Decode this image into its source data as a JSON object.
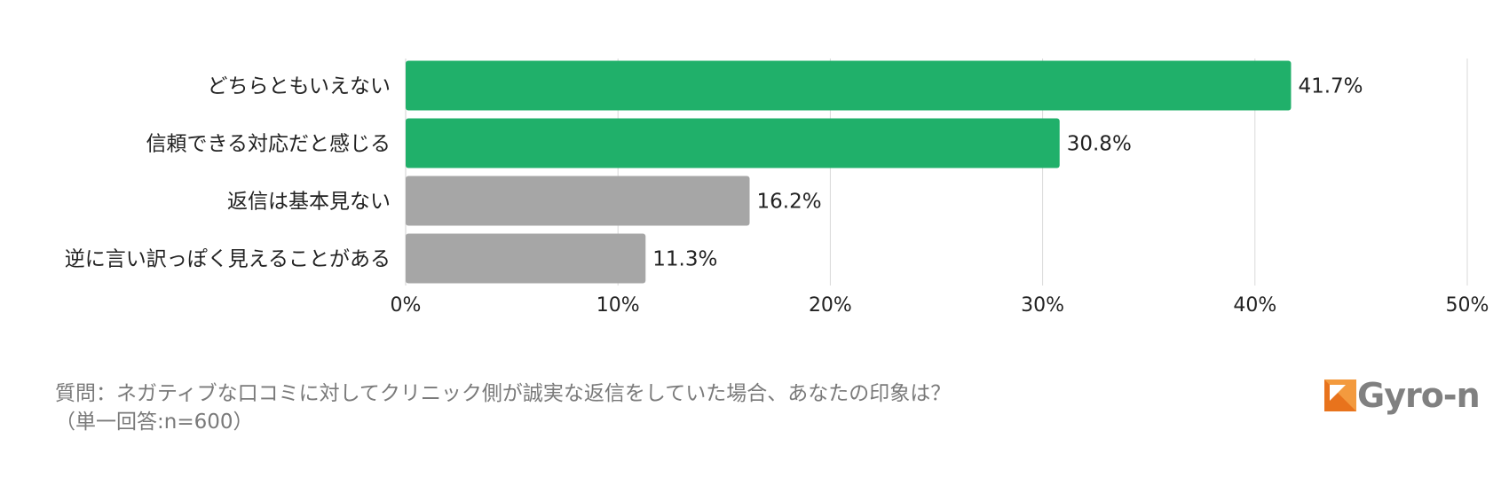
{
  "chart_data": {
    "type": "bar",
    "orientation": "horizontal",
    "categories": [
      "どちらともいえない",
      "信頼できる対応だと感じる",
      "返信は基本見ない",
      "逆に言い訳っぽく見えることがある"
    ],
    "values": [
      41.7,
      30.8,
      16.2,
      11.3
    ],
    "value_labels": [
      "41.7%",
      "30.8%",
      "16.2%",
      "11.3%"
    ],
    "bar_colors": [
      "#20b06a",
      "#20b06a",
      "#a6a6a6",
      "#a6a6a6"
    ],
    "xlim": [
      0,
      50
    ],
    "xticks": [
      0,
      10,
      20,
      30,
      40,
      50
    ],
    "xtick_labels": [
      "0%",
      "10%",
      "20%",
      "30%",
      "40%",
      "50%"
    ],
    "grid": true,
    "gridline_color": "#d9d9d9"
  },
  "footer": {
    "question": "質問：ネガティブな口コミに対してクリニック側が誠実な返信をしていた場合、あなたの印象は？",
    "note": "（単一回答:n=600）"
  },
  "logo": {
    "text": "Gyro-n",
    "icon": "gyro-n-logo-icon",
    "accent_color": "#e8731c"
  }
}
